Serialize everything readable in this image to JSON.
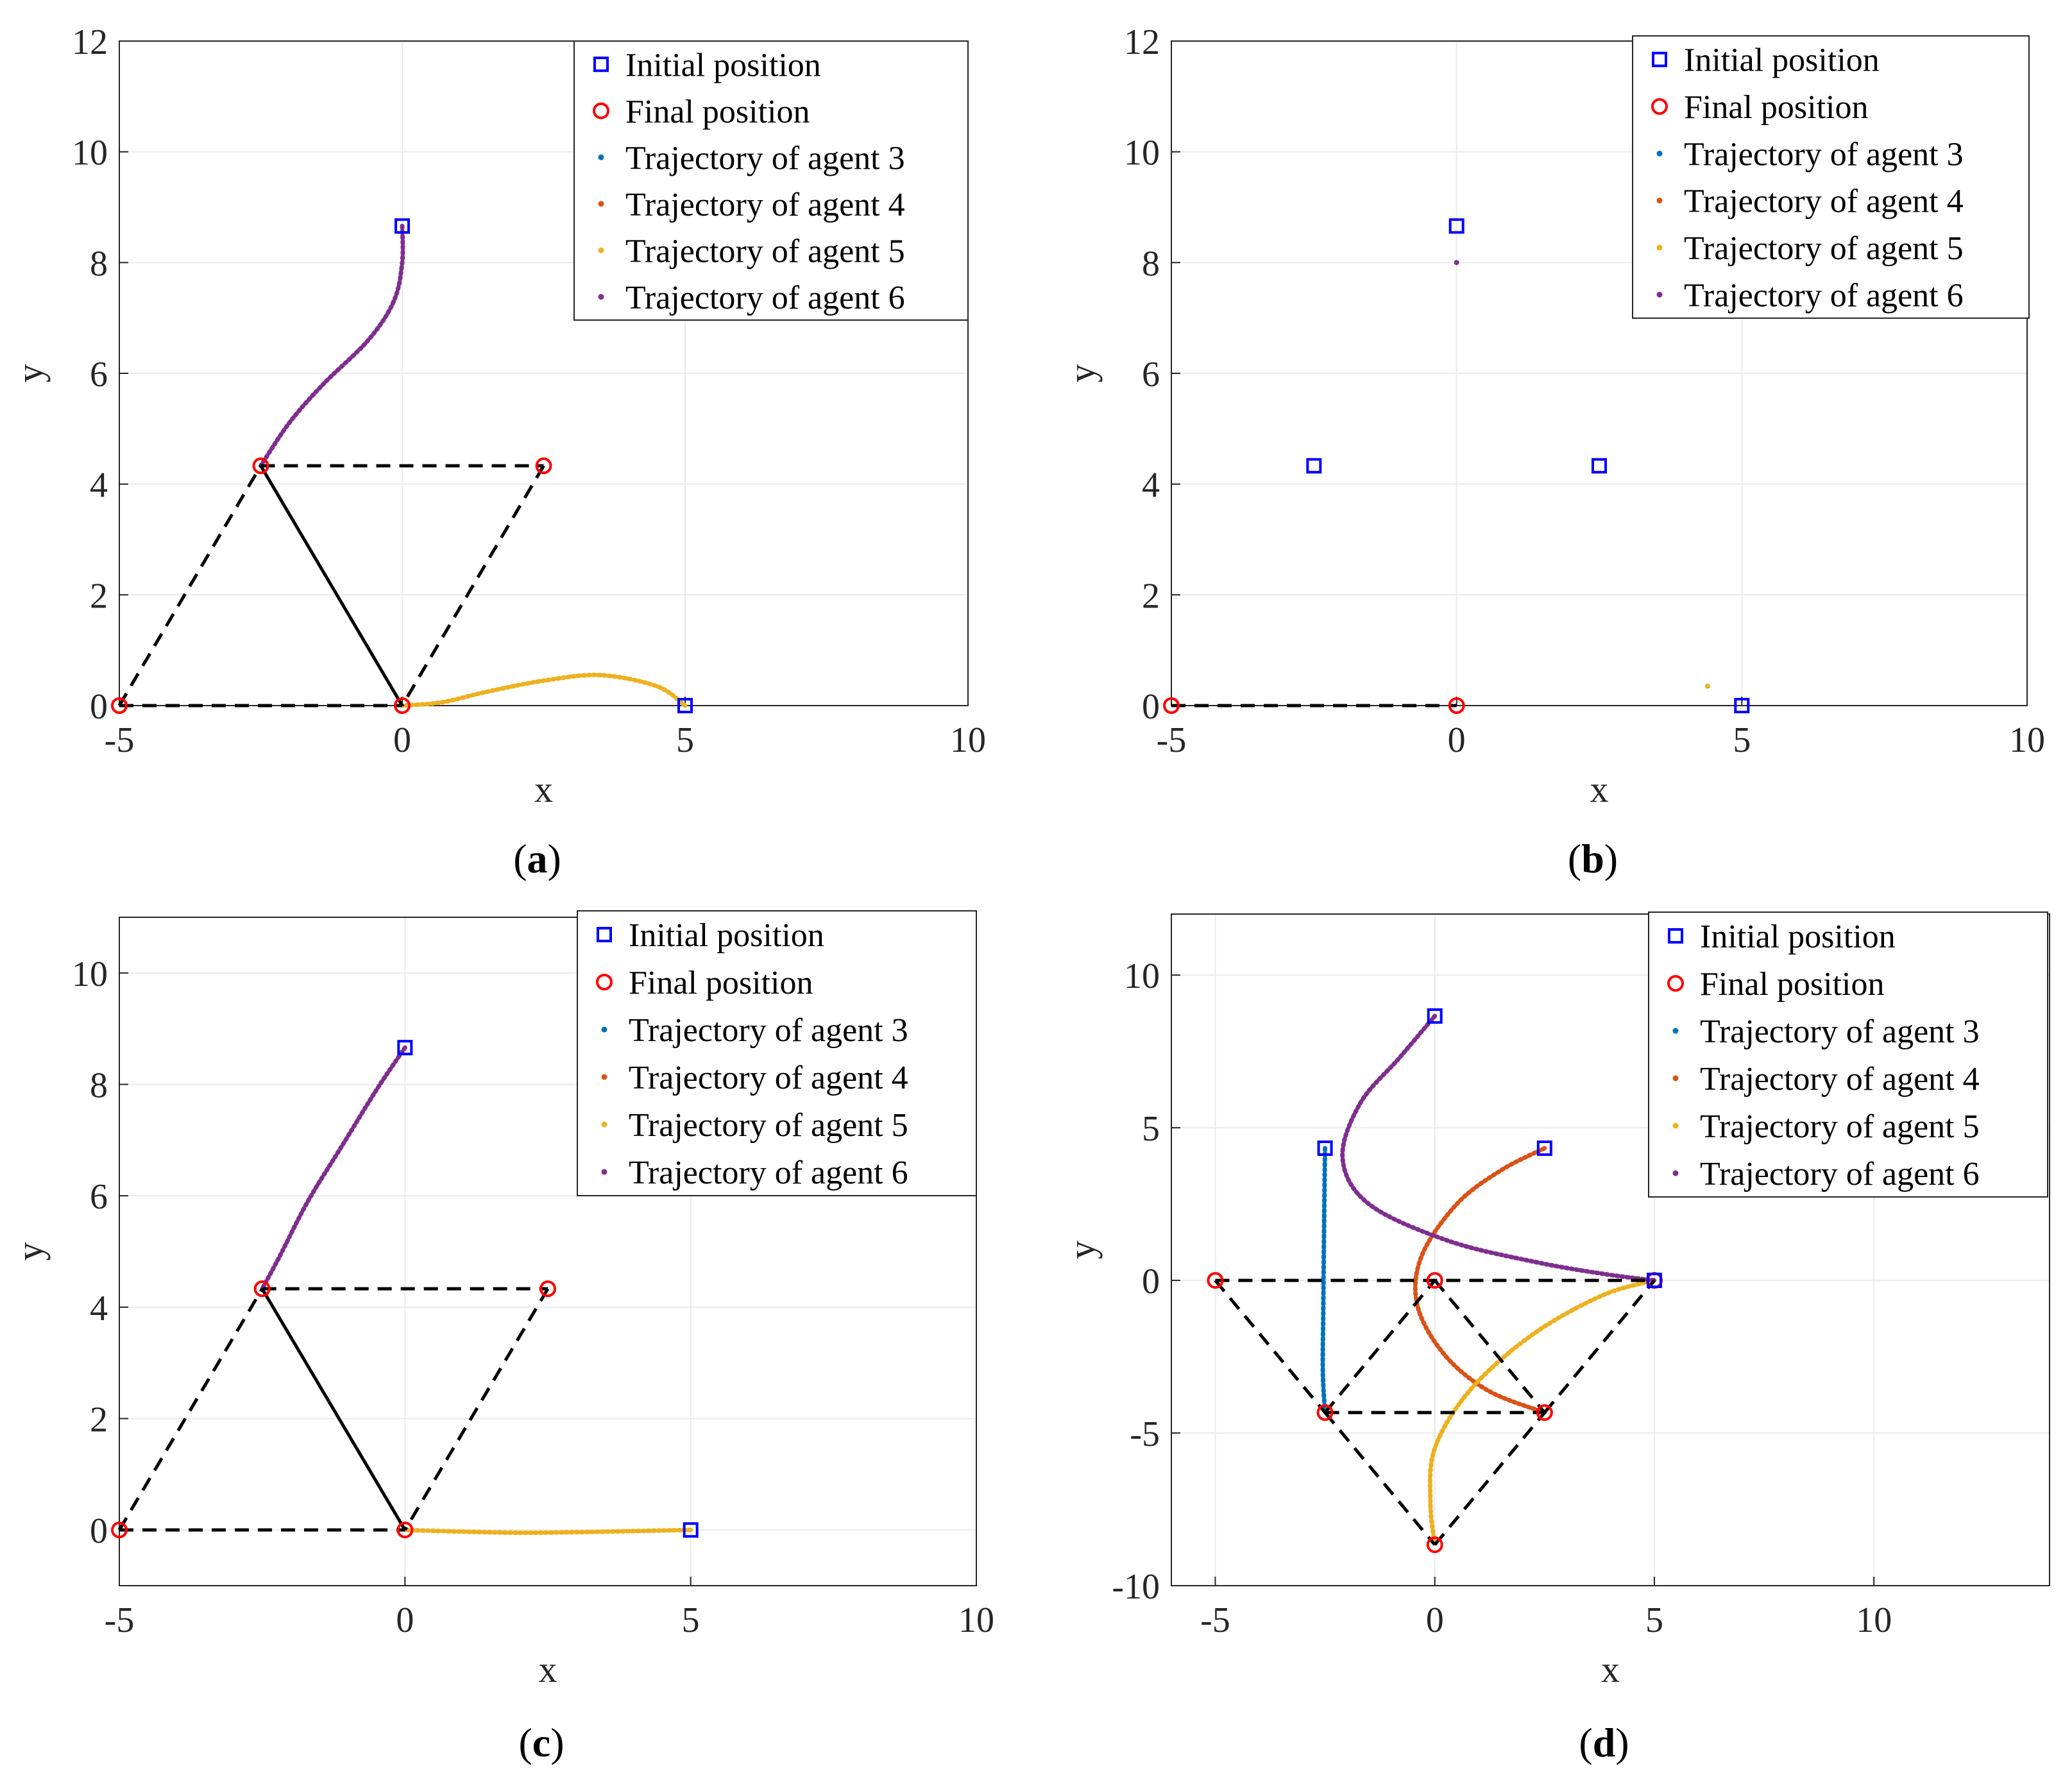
{
  "colors": {
    "initial": "#0000ff",
    "final": "#ff0000",
    "agent3": "#0072bd",
    "agent4": "#d95319",
    "agent5": "#edb120",
    "agent6": "#7e2f8e",
    "edge": "#000000"
  },
  "legend": [
    {
      "key": "initial",
      "label": "Initial position"
    },
    {
      "key": "final",
      "label": "Final position"
    },
    {
      "key": "agent3",
      "label": "Trajectory of agent 3"
    },
    {
      "key": "agent4",
      "label": "Trajectory of agent 4"
    },
    {
      "key": "agent5",
      "label": "Trajectory of agent 5"
    },
    {
      "key": "agent6",
      "label": "Trajectory of agent 6"
    }
  ],
  "chart_data": [
    {
      "id": "a",
      "panel_label": "a",
      "type": "scatter",
      "xlabel": "x",
      "ylabel": "y",
      "xlim": [
        -5,
        10
      ],
      "ylim": [
        0,
        12
      ],
      "xticks": [
        -5,
        0,
        5,
        10
      ],
      "yticks": [
        0,
        2,
        4,
        6,
        8,
        10,
        12
      ],
      "tick_labels_x": [
        "-5",
        "0",
        "5",
        "10"
      ],
      "tick_labels_y": [
        "0",
        "2",
        "4",
        "6",
        "8",
        "10",
        "12"
      ],
      "legend_position": "top-right",
      "initial_positions": [
        [
          0,
          8.66
        ],
        [
          5,
          0
        ]
      ],
      "final_positions": [
        [
          -5,
          0
        ],
        [
          -2.5,
          4.33
        ],
        [
          2.5,
          4.33
        ],
        [
          0,
          0
        ]
      ],
      "solid_edges": [
        [
          [
            -2.5,
            4.33
          ],
          [
            0,
            0
          ]
        ]
      ],
      "dashed_edges": [
        [
          [
            -5,
            0
          ],
          [
            0,
            0
          ]
        ],
        [
          [
            -5,
            0
          ],
          [
            -2.5,
            4.33
          ]
        ],
        [
          [
            -2.5,
            4.33
          ],
          [
            2.5,
            4.33
          ]
        ],
        [
          [
            2.5,
            4.33
          ],
          [
            0,
            0
          ]
        ]
      ],
      "trajectories": [
        {
          "agent": "agent6",
          "points": [
            [
              0,
              8.66
            ],
            [
              0,
              8.0
            ],
            [
              -0.15,
              7.3
            ],
            [
              -0.6,
              6.6
            ],
            [
              -1.4,
              5.8
            ],
            [
              -2.0,
              5.1
            ],
            [
              -2.5,
              4.33
            ]
          ]
        },
        {
          "agent": "agent5",
          "points": [
            [
              5,
              0
            ],
            [
              4.5,
              0.35
            ],
            [
              3.5,
              0.55
            ],
            [
              2.5,
              0.45
            ],
            [
              1.5,
              0.25
            ],
            [
              0.7,
              0.06
            ],
            [
              0,
              0
            ]
          ]
        }
      ]
    },
    {
      "id": "b",
      "panel_label": "b",
      "type": "scatter",
      "xlabel": "x",
      "ylabel": "y",
      "xlim": [
        -5,
        10
      ],
      "ylim": [
        0,
        12
      ],
      "xticks": [
        -5,
        0,
        5,
        10
      ],
      "yticks": [
        0,
        2,
        4,
        6,
        8,
        10,
        12
      ],
      "tick_labels_x": [
        "-5",
        "0",
        "5",
        "10"
      ],
      "tick_labels_y": [
        "0",
        "2",
        "4",
        "6",
        "8",
        "10",
        "12"
      ],
      "legend_position": "top-right",
      "initial_positions": [
        [
          0,
          8.66
        ],
        [
          -2.5,
          4.33
        ],
        [
          2.5,
          4.33
        ],
        [
          5,
          0
        ]
      ],
      "final_positions": [
        [
          -5,
          0
        ],
        [
          0,
          0
        ]
      ],
      "solid_edges": [],
      "dashed_edges": [
        [
          [
            -5,
            0
          ],
          [
            0,
            0
          ]
        ]
      ],
      "trajectories": [
        {
          "agent": "agent6",
          "points": [
            [
              0,
              8.0
            ]
          ]
        },
        {
          "agent": "agent5",
          "points": [
            [
              4.4,
              0.35
            ]
          ]
        }
      ]
    },
    {
      "id": "c",
      "panel_label": "c",
      "type": "scatter",
      "xlabel": "x",
      "ylabel": "y",
      "xlim": [
        -5,
        10
      ],
      "ylim": [
        -1,
        11
      ],
      "xticks": [
        -5,
        0,
        5,
        10
      ],
      "yticks": [
        0,
        2,
        4,
        6,
        8,
        10
      ],
      "tick_labels_x": [
        "-5",
        "0",
        "5",
        "10"
      ],
      "tick_labels_y": [
        "0",
        "2",
        "4",
        "6",
        "8",
        "10"
      ],
      "legend_position": "top-right",
      "initial_positions": [
        [
          0,
          8.66
        ],
        [
          5,
          0
        ]
      ],
      "final_positions": [
        [
          -5,
          0
        ],
        [
          -2.5,
          4.33
        ],
        [
          2.5,
          4.33
        ],
        [
          0,
          0
        ]
      ],
      "solid_edges": [
        [
          [
            -2.5,
            4.33
          ],
          [
            0,
            0
          ]
        ]
      ],
      "dashed_edges": [
        [
          [
            -5,
            0
          ],
          [
            0,
            0
          ]
        ],
        [
          [
            -5,
            0
          ],
          [
            -2.5,
            4.33
          ]
        ],
        [
          [
            -2.5,
            4.33
          ],
          [
            2.5,
            4.33
          ]
        ],
        [
          [
            2.5,
            4.33
          ],
          [
            0,
            0
          ]
        ]
      ],
      "trajectories": [
        {
          "agent": "agent6",
          "points": [
            [
              0,
              8.66
            ],
            [
              -0.5,
              7.9
            ],
            [
              -1.1,
              6.9
            ],
            [
              -1.7,
              5.9
            ],
            [
              -2.2,
              4.9
            ],
            [
              -2.5,
              4.33
            ]
          ]
        },
        {
          "agent": "agent5",
          "points": [
            [
              5,
              0
            ],
            [
              4.0,
              -0.02
            ],
            [
              3.0,
              -0.04
            ],
            [
              2.0,
              -0.05
            ],
            [
              1.0,
              -0.03
            ],
            [
              0,
              0
            ]
          ]
        }
      ]
    },
    {
      "id": "d",
      "panel_label": "d",
      "type": "scatter",
      "xlabel": "x",
      "ylabel": "y",
      "xlim": [
        -6,
        14
      ],
      "ylim": [
        -10,
        12
      ],
      "xticks": [
        -5,
        0,
        5,
        10
      ],
      "yticks": [
        -10,
        -5,
        0,
        5,
        10
      ],
      "tick_labels_x": [
        "-5",
        "0",
        "5",
        "10"
      ],
      "tick_labels_y": [
        "-10",
        "-5",
        "0",
        "5",
        "10"
      ],
      "legend_position": "top-right",
      "initial_positions": [
        [
          0,
          8.66
        ],
        [
          -2.5,
          4.33
        ],
        [
          2.5,
          4.33
        ],
        [
          5,
          0
        ]
      ],
      "final_positions": [
        [
          -5,
          0
        ],
        [
          0,
          0
        ],
        [
          5,
          0
        ],
        [
          -2.5,
          -4.33
        ],
        [
          2.5,
          -4.33
        ],
        [
          0,
          -8.66
        ]
      ],
      "solid_edges": [],
      "dashed_edges": [
        [
          [
            -5,
            0
          ],
          [
            5,
            0
          ]
        ],
        [
          [
            -5,
            0
          ],
          [
            -2.5,
            -4.33
          ]
        ],
        [
          [
            -2.5,
            -4.33
          ],
          [
            0,
            -8.66
          ]
        ],
        [
          [
            0,
            -8.66
          ],
          [
            2.5,
            -4.33
          ]
        ],
        [
          [
            2.5,
            -4.33
          ],
          [
            5,
            0
          ]
        ],
        [
          [
            -2.5,
            -4.33
          ],
          [
            2.5,
            -4.33
          ]
        ],
        [
          [
            -2.5,
            -4.33
          ],
          [
            0,
            0
          ]
        ],
        [
          [
            0,
            0
          ],
          [
            2.5,
            -4.33
          ]
        ]
      ],
      "trajectories": [
        {
          "agent": "agent3",
          "points": [
            [
              -2.5,
              4.33
            ],
            [
              -2.52,
              2.0
            ],
            [
              -2.54,
              -1.0
            ],
            [
              -2.55,
              -3.0
            ],
            [
              -2.5,
              -4.33
            ]
          ]
        },
        {
          "agent": "agent4",
          "points": [
            [
              2.5,
              4.33
            ],
            [
              1.5,
              3.6
            ],
            [
              0.5,
              2.5
            ],
            [
              -0.3,
              0.8
            ],
            [
              -0.4,
              -0.8
            ],
            [
              0.2,
              -2.4
            ],
            [
              1.2,
              -3.6
            ],
            [
              2.5,
              -4.33
            ]
          ]
        },
        {
          "agent": "agent5",
          "points": [
            [
              5,
              0
            ],
            [
              3.8,
              -0.5
            ],
            [
              2.2,
              -1.8
            ],
            [
              0.8,
              -3.6
            ],
            [
              0.0,
              -5.5
            ],
            [
              -0.1,
              -7.3
            ],
            [
              0,
              -8.66
            ]
          ]
        },
        {
          "agent": "agent6",
          "points": [
            [
              0,
              8.66
            ],
            [
              -0.8,
              7.3
            ],
            [
              -1.7,
              5.8
            ],
            [
              -2.1,
              4.0
            ],
            [
              -1.5,
              2.5
            ],
            [
              0.3,
              1.3
            ],
            [
              2.3,
              0.6
            ],
            [
              3.9,
              0.2
            ],
            [
              5,
              0
            ]
          ]
        }
      ]
    }
  ]
}
